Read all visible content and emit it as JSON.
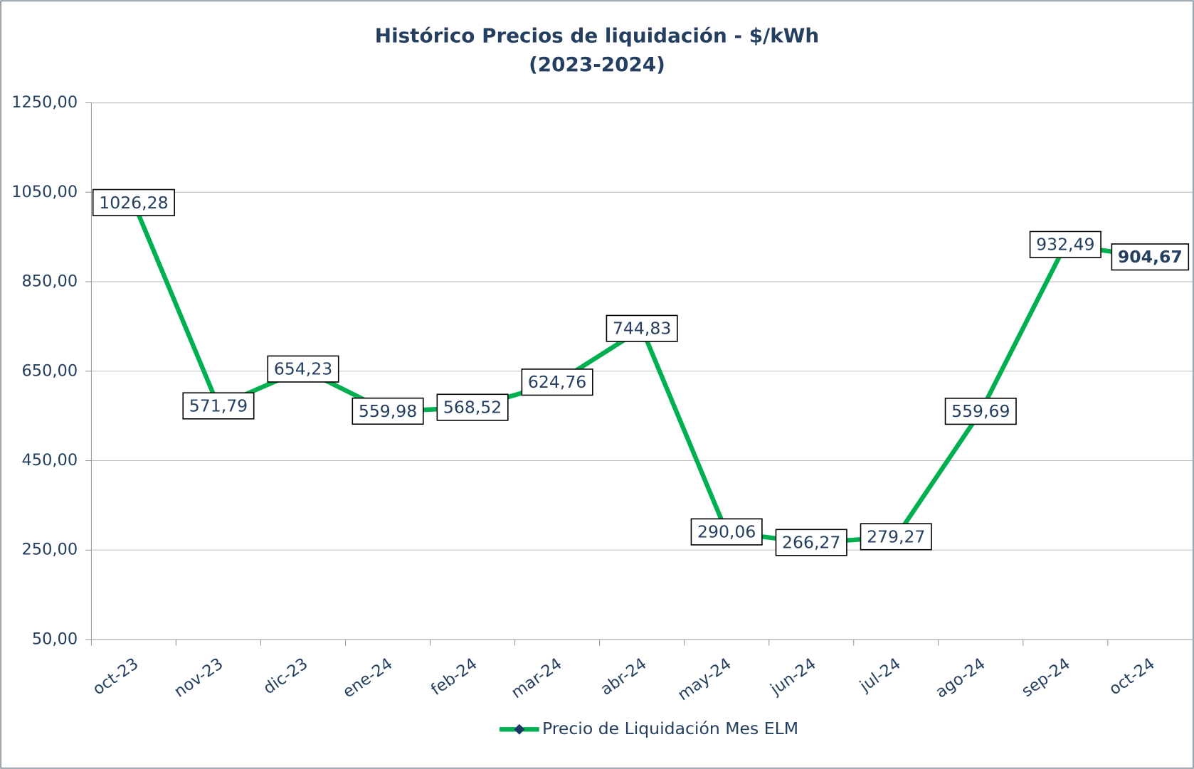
{
  "chart_data": {
    "type": "line",
    "title": "Histórico Precios de liquidación - $/kWh",
    "subtitle": "(2023-2024)",
    "categories": [
      "oct-23",
      "nov-23",
      "dic-23",
      "ene-24",
      "feb-24",
      "mar-24",
      "abr-24",
      "may-24",
      "jun-24",
      "jul-24",
      "ago-24",
      "sep-24",
      "oct-24"
    ],
    "series": [
      {
        "name": "Precio de Liquidación Mes ELM",
        "color": "#00b050",
        "marker_color": "#1f3864",
        "values": [
          1026.28,
          571.79,
          654.23,
          559.98,
          568.52,
          624.76,
          744.83,
          290.06,
          266.27,
          279.27,
          559.69,
          932.49,
          904.67
        ],
        "value_labels": [
          "1026,28",
          "571,79",
          "654,23",
          "559,98",
          "568,52",
          "624,76",
          "744,83",
          "290,06",
          "266,27",
          "279,27",
          "559,69",
          "932,49",
          "904,67"
        ]
      }
    ],
    "ylim": [
      50,
      1250
    ],
    "yticks": [
      {
        "value": 50,
        "label": "50,00"
      },
      {
        "value": 250,
        "label": "250,00"
      },
      {
        "value": 450,
        "label": "450,00"
      },
      {
        "value": 650,
        "label": "650,00"
      },
      {
        "value": 850,
        "label": "850,00"
      },
      {
        "value": 1050,
        "label": "1050,00"
      },
      {
        "value": 1250,
        "label": "1250,00"
      }
    ],
    "grid": true,
    "legend": "bottom"
  }
}
